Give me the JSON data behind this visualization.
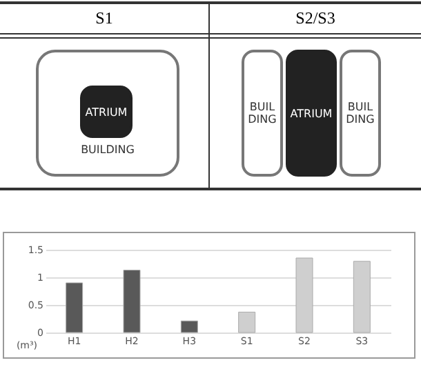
{
  "chart_data": [
    {
      "type": "other",
      "annotations": [
        "S1",
        "S2/S3",
        "ATRIUM",
        "BUILDING",
        "BUIL DING",
        "ATRIUM",
        "BUIL DING"
      ]
    },
    {
      "type": "bar",
      "categories": [
        "H1",
        "H2",
        "H3",
        "S1",
        "S2",
        "S3"
      ],
      "values": [
        0.9,
        1.13,
        0.21,
        0.37,
        1.35,
        1.29
      ],
      "colors": [
        "#595959",
        "#595959",
        "#595959",
        "#cfcfcf",
        "#cfcfcf",
        "#cfcfcf"
      ],
      "ylabel": "(m³)",
      "ylim": [
        0,
        1.5
      ],
      "yticks": [
        0,
        {
          "value": 0.5,
          "label": "0.5"
        },
        1,
        1.5
      ],
      "grid": "y"
    }
  ]
}
